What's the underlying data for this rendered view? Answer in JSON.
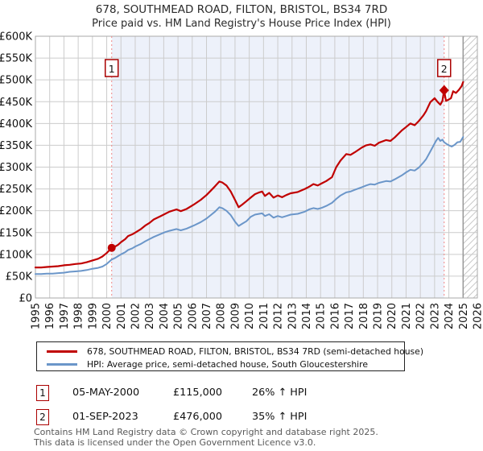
{
  "title": {
    "line1": "678, SOUTHMEAD ROAD, FILTON, BRISTOL, BS34 7RD",
    "line2": "Price paid vs. HM Land Registry's House Price Index (HPI)"
  },
  "chart_data": {
    "type": "line",
    "title": "678, SOUTHMEAD ROAD, FILTON, BRISTOL, BS34 7RD — Price paid vs. HPI",
    "value_unit": "GBP_thousands",
    "x_axis": {
      "range": [
        1995,
        2026
      ],
      "ticks": [
        "1995",
        "1996",
        "1997",
        "1998",
        "1999",
        "2000",
        "2001",
        "2002",
        "2003",
        "2004",
        "2005",
        "2006",
        "2007",
        "2008",
        "2009",
        "2010",
        "2011",
        "2012",
        "2013",
        "2014",
        "2015",
        "2016",
        "2017",
        "2018",
        "2019",
        "2020",
        "2021",
        "2022",
        "2023",
        "2024",
        "2025",
        "2026"
      ]
    },
    "y_axis": {
      "max_k": 600,
      "ticks": [
        {
          "v": 0,
          "label": "£0"
        },
        {
          "v": 50,
          "label": "£50K"
        },
        {
          "v": 100,
          "label": "£100K"
        },
        {
          "v": 150,
          "label": "£150K"
        },
        {
          "v": 200,
          "label": "£200K"
        },
        {
          "v": 250,
          "label": "£250K"
        },
        {
          "v": 300,
          "label": "£300K"
        },
        {
          "v": 350,
          "label": "£350K"
        },
        {
          "v": 400,
          "label": "£400K"
        },
        {
          "v": 450,
          "label": "£450K"
        },
        {
          "v": 500,
          "label": "£500K"
        },
        {
          "v": 550,
          "label": "£550K"
        },
        {
          "v": 600,
          "label": "£600K"
        }
      ]
    },
    "grid": true,
    "legend_position": "bottom",
    "owned_region": {
      "from": 2000.35,
      "to": 2023.67
    },
    "hatch_region": {
      "from": 2025.0,
      "to": 2026.0
    },
    "colors": {
      "price_line": "#c00000",
      "hpi_line": "#6b96c9",
      "sale_dashed_line": "#f08686",
      "owned_region_fill": "#edf1fa",
      "grid": "#cccccc",
      "plot_border": "#aaaaaa",
      "hatch_line": "#c9c9c9",
      "hatch_edge": "#999999",
      "marker_box_border": "#aa0000"
    },
    "sales": [
      {
        "label": "1",
        "date": "05-MAY-2000",
        "year": 2000.35,
        "price_k": 115,
        "marker": "circle"
      },
      {
        "label": "2",
        "date": "01-SEP-2023",
        "year": 2023.67,
        "price_k": 476,
        "marker": "diamond"
      }
    ],
    "series": [
      {
        "name": "678, SOUTHMEAD ROAD, FILTON, BRISTOL, BS34 7RD (semi-detached house)",
        "color": "#c00000",
        "width": 2.2,
        "points": [
          [
            1995.0,
            70
          ],
          [
            1995.4,
            70
          ],
          [
            1995.8,
            71
          ],
          [
            1996.2,
            72
          ],
          [
            1996.6,
            73
          ],
          [
            1997.0,
            75
          ],
          [
            1997.4,
            76
          ],
          [
            1997.8,
            78
          ],
          [
            1998.2,
            79
          ],
          [
            1998.6,
            82
          ],
          [
            1999.0,
            86
          ],
          [
            1999.4,
            90
          ],
          [
            1999.7,
            95
          ],
          [
            2000.0,
            103
          ],
          [
            2000.35,
            115
          ],
          [
            2000.6,
            118
          ],
          [
            2000.8,
            122
          ],
          [
            2001.0,
            128
          ],
          [
            2001.3,
            135
          ],
          [
            2001.5,
            142
          ],
          [
            2001.8,
            146
          ],
          [
            2002.0,
            150
          ],
          [
            2002.4,
            158
          ],
          [
            2002.7,
            166
          ],
          [
            2003.0,
            172
          ],
          [
            2003.3,
            180
          ],
          [
            2003.8,
            188
          ],
          [
            2004.1,
            193
          ],
          [
            2004.4,
            198
          ],
          [
            2004.9,
            203
          ],
          [
            2005.2,
            199
          ],
          [
            2005.6,
            204
          ],
          [
            2006.1,
            214
          ],
          [
            2006.6,
            225
          ],
          [
            2007.0,
            236
          ],
          [
            2007.3,
            246
          ],
          [
            2007.6,
            256
          ],
          [
            2007.9,
            267
          ],
          [
            2008.1,
            265
          ],
          [
            2008.4,
            258
          ],
          [
            2008.7,
            244
          ],
          [
            2009.0,
            225
          ],
          [
            2009.25,
            208
          ],
          [
            2009.5,
            214
          ],
          [
            2009.8,
            222
          ],
          [
            2010.1,
            230
          ],
          [
            2010.4,
            238
          ],
          [
            2010.7,
            242
          ],
          [
            2010.9,
            244
          ],
          [
            2011.1,
            234
          ],
          [
            2011.4,
            241
          ],
          [
            2011.7,
            230
          ],
          [
            2012.0,
            235
          ],
          [
            2012.3,
            231
          ],
          [
            2012.6,
            236
          ],
          [
            2012.9,
            240
          ],
          [
            2013.4,
            243
          ],
          [
            2013.9,
            250
          ],
          [
            2014.2,
            255
          ],
          [
            2014.5,
            261
          ],
          [
            2014.8,
            258
          ],
          [
            2015.1,
            263
          ],
          [
            2015.4,
            268
          ],
          [
            2015.8,
            277
          ],
          [
            2016.1,
            300
          ],
          [
            2016.4,
            315
          ],
          [
            2016.8,
            330
          ],
          [
            2017.1,
            328
          ],
          [
            2017.4,
            334
          ],
          [
            2017.9,
            345
          ],
          [
            2018.2,
            350
          ],
          [
            2018.5,
            352
          ],
          [
            2018.8,
            349
          ],
          [
            2019.1,
            356
          ],
          [
            2019.6,
            362
          ],
          [
            2019.9,
            360
          ],
          [
            2020.2,
            368
          ],
          [
            2020.7,
            384
          ],
          [
            2021.0,
            392
          ],
          [
            2021.3,
            400
          ],
          [
            2021.6,
            396
          ],
          [
            2021.9,
            406
          ],
          [
            2022.2,
            418
          ],
          [
            2022.4,
            428
          ],
          [
            2022.7,
            449
          ],
          [
            2023.0,
            458
          ],
          [
            2023.2,
            450
          ],
          [
            2023.4,
            443
          ],
          [
            2023.55,
            452
          ],
          [
            2023.67,
            476
          ],
          [
            2023.8,
            452
          ],
          [
            2024.0,
            455
          ],
          [
            2024.15,
            458
          ],
          [
            2024.3,
            474
          ],
          [
            2024.5,
            470
          ],
          [
            2024.7,
            477
          ],
          [
            2024.9,
            486
          ],
          [
            2025.0,
            495
          ]
        ]
      },
      {
        "name": "HPI: Average price, semi-detached house, South Gloucestershire",
        "color": "#6b96c9",
        "width": 2,
        "points": [
          [
            1995.0,
            55
          ],
          [
            1995.4,
            55
          ],
          [
            1995.8,
            56
          ],
          [
            1996.2,
            56
          ],
          [
            1996.6,
            57
          ],
          [
            1997.0,
            58
          ],
          [
            1997.4,
            60
          ],
          [
            1997.8,
            61
          ],
          [
            1998.2,
            62
          ],
          [
            1998.6,
            64
          ],
          [
            1999.0,
            67
          ],
          [
            1999.4,
            69
          ],
          [
            1999.7,
            72
          ],
          [
            2000.0,
            78
          ],
          [
            2000.35,
            88
          ],
          [
            2000.6,
            92
          ],
          [
            2000.8,
            96
          ],
          [
            2001.0,
            100
          ],
          [
            2001.3,
            105
          ],
          [
            2001.5,
            110
          ],
          [
            2001.8,
            114
          ],
          [
            2002.0,
            118
          ],
          [
            2002.4,
            124
          ],
          [
            2002.7,
            130
          ],
          [
            2003.0,
            135
          ],
          [
            2003.3,
            140
          ],
          [
            2003.8,
            147
          ],
          [
            2004.1,
            151
          ],
          [
            2004.4,
            154
          ],
          [
            2004.9,
            158
          ],
          [
            2005.2,
            155
          ],
          [
            2005.6,
            159
          ],
          [
            2006.1,
            166
          ],
          [
            2006.6,
            174
          ],
          [
            2007.0,
            182
          ],
          [
            2007.3,
            190
          ],
          [
            2007.6,
            198
          ],
          [
            2007.9,
            208
          ],
          [
            2008.1,
            206
          ],
          [
            2008.4,
            200
          ],
          [
            2008.7,
            190
          ],
          [
            2009.0,
            175
          ],
          [
            2009.25,
            165
          ],
          [
            2009.5,
            170
          ],
          [
            2009.8,
            176
          ],
          [
            2010.1,
            186
          ],
          [
            2010.4,
            191
          ],
          [
            2010.7,
            193
          ],
          [
            2010.9,
            194
          ],
          [
            2011.1,
            188
          ],
          [
            2011.4,
            192
          ],
          [
            2011.7,
            184
          ],
          [
            2012.0,
            188
          ],
          [
            2012.3,
            185
          ],
          [
            2012.6,
            188
          ],
          [
            2012.9,
            191
          ],
          [
            2013.4,
            193
          ],
          [
            2013.9,
            198
          ],
          [
            2014.2,
            203
          ],
          [
            2014.5,
            206
          ],
          [
            2014.8,
            204
          ],
          [
            2015.1,
            207
          ],
          [
            2015.4,
            211
          ],
          [
            2015.8,
            218
          ],
          [
            2016.1,
            227
          ],
          [
            2016.4,
            235
          ],
          [
            2016.8,
            242
          ],
          [
            2017.1,
            244
          ],
          [
            2017.4,
            248
          ],
          [
            2017.9,
            254
          ],
          [
            2018.2,
            258
          ],
          [
            2018.5,
            261
          ],
          [
            2018.8,
            260
          ],
          [
            2019.1,
            264
          ],
          [
            2019.6,
            268
          ],
          [
            2019.9,
            267
          ],
          [
            2020.2,
            272
          ],
          [
            2020.7,
            281
          ],
          [
            2021.0,
            288
          ],
          [
            2021.3,
            294
          ],
          [
            2021.6,
            292
          ],
          [
            2021.9,
            299
          ],
          [
            2022.2,
            310
          ],
          [
            2022.4,
            318
          ],
          [
            2022.7,
            336
          ],
          [
            2022.9,
            348
          ],
          [
            2023.1,
            360
          ],
          [
            2023.25,
            367
          ],
          [
            2023.4,
            360
          ],
          [
            2023.55,
            363
          ],
          [
            2023.67,
            357
          ],
          [
            2023.85,
            353
          ],
          [
            2024.0,
            350
          ],
          [
            2024.2,
            347
          ],
          [
            2024.4,
            351
          ],
          [
            2024.6,
            357
          ],
          [
            2024.8,
            358
          ],
          [
            2025.0,
            369
          ]
        ]
      }
    ]
  },
  "annotations": {
    "rows": [
      {
        "marker": "1",
        "date": "05-MAY-2000",
        "price": "£115,000",
        "hpi_change": "26% ↑ HPI"
      },
      {
        "marker": "2",
        "date": "01-SEP-2023",
        "price": "£476,000",
        "hpi_change": "35% ↑ HPI"
      }
    ]
  },
  "footer": {
    "line1": "Contains HM Land Registry data © Crown copyright and database right 2025.",
    "line2": "This data is licensed under the Open Government Licence v3.0."
  }
}
